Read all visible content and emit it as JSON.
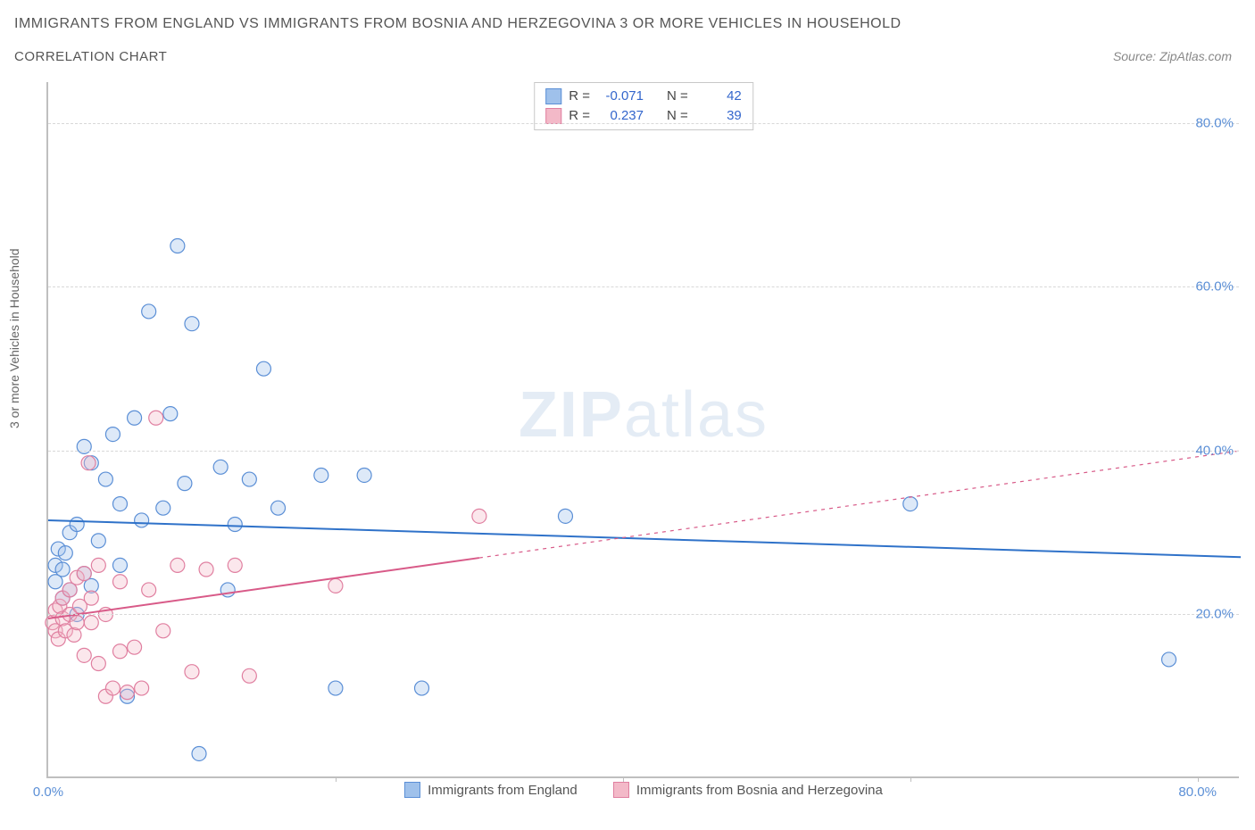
{
  "title_line1": "IMMIGRANTS FROM ENGLAND VS IMMIGRANTS FROM BOSNIA AND HERZEGOVINA 3 OR MORE VEHICLES IN HOUSEHOLD",
  "title_line2": "CORRELATION CHART",
  "source_label": "Source: ZipAtlas.com",
  "y_axis_label": "3 or more Vehicles in Household",
  "watermark": {
    "part1": "ZIP",
    "part2": "atlas"
  },
  "chart": {
    "type": "scatter",
    "xlim": [
      0,
      83
    ],
    "ylim": [
      0,
      85
    ],
    "x_ticks": [
      0,
      80
    ],
    "x_tick_labels": [
      "0.0%",
      "80.0%"
    ],
    "x_minor_ticks": [
      20,
      40,
      60,
      80
    ],
    "y_ticks": [
      20,
      40,
      60,
      80
    ],
    "y_tick_labels": [
      "20.0%",
      "40.0%",
      "60.0%",
      "80.0%"
    ],
    "grid_color": "#d8d8d8",
    "axis_color": "#bfbfbf",
    "background_color": "#ffffff",
    "label_fontsize": 14,
    "tick_fontsize": 15,
    "tick_color": "#5b8fd6",
    "marker_radius": 8,
    "marker_fill_opacity": 0.35,
    "marker_stroke_width": 1.2,
    "series": [
      {
        "id": "england",
        "label": "Immigrants from England",
        "color_fill": "#9fc1eb",
        "color_stroke": "#5b8fd6",
        "R": "-0.071",
        "N": "42",
        "trend": {
          "x1": 0,
          "y1": 31.5,
          "x2": 83,
          "y2": 27.0,
          "dash_split_x": 83,
          "color": "#2f72c9",
          "width": 2
        },
        "points": [
          [
            0.5,
            24
          ],
          [
            0.5,
            26
          ],
          [
            0.7,
            28
          ],
          [
            1.0,
            22
          ],
          [
            1.0,
            25.5
          ],
          [
            1.2,
            27.5
          ],
          [
            1.5,
            23
          ],
          [
            1.5,
            30
          ],
          [
            2.0,
            20
          ],
          [
            2.0,
            31
          ],
          [
            2.5,
            25
          ],
          [
            2.5,
            40.5
          ],
          [
            3.0,
            38.5
          ],
          [
            3.0,
            23.5
          ],
          [
            3.5,
            29
          ],
          [
            4.0,
            36.5
          ],
          [
            4.5,
            42
          ],
          [
            5.0,
            26
          ],
          [
            5.0,
            33.5
          ],
          [
            5.5,
            10
          ],
          [
            6.0,
            44
          ],
          [
            6.5,
            31.5
          ],
          [
            7.0,
            57
          ],
          [
            8.0,
            33
          ],
          [
            8.5,
            44.5
          ],
          [
            9.0,
            65
          ],
          [
            9.5,
            36
          ],
          [
            10.0,
            55.5
          ],
          [
            10.5,
            3
          ],
          [
            12.0,
            38
          ],
          [
            12.5,
            23
          ],
          [
            13.0,
            31
          ],
          [
            14.0,
            36.5
          ],
          [
            15.0,
            50
          ],
          [
            16.0,
            33
          ],
          [
            19.0,
            37
          ],
          [
            20.0,
            11
          ],
          [
            22.0,
            37
          ],
          [
            26.0,
            11
          ],
          [
            36.0,
            32
          ],
          [
            60.0,
            33.5
          ],
          [
            78.0,
            14.5
          ]
        ]
      },
      {
        "id": "bosnia",
        "label": "Immigrants from Bosnia and Herzegovina",
        "color_fill": "#f3b9c8",
        "color_stroke": "#e07fa0",
        "R": "0.237",
        "N": "39",
        "trend": {
          "x1": 0,
          "y1": 19.5,
          "x2": 83,
          "y2": 40.0,
          "dash_split_x": 30,
          "color": "#d85a88",
          "width": 2
        },
        "points": [
          [
            0.3,
            19
          ],
          [
            0.5,
            18
          ],
          [
            0.5,
            20.5
          ],
          [
            0.7,
            17
          ],
          [
            0.8,
            21
          ],
          [
            1.0,
            19.5
          ],
          [
            1.0,
            22
          ],
          [
            1.2,
            18
          ],
          [
            1.5,
            20
          ],
          [
            1.5,
            23
          ],
          [
            1.8,
            17.5
          ],
          [
            2.0,
            19
          ],
          [
            2.0,
            24.5
          ],
          [
            2.2,
            21
          ],
          [
            2.5,
            15
          ],
          [
            2.5,
            25
          ],
          [
            2.8,
            38.5
          ],
          [
            3.0,
            19
          ],
          [
            3.0,
            22
          ],
          [
            3.5,
            14
          ],
          [
            3.5,
            26
          ],
          [
            4.0,
            20
          ],
          [
            4.0,
            10
          ],
          [
            4.5,
            11
          ],
          [
            5.0,
            24
          ],
          [
            5.0,
            15.5
          ],
          [
            5.5,
            10.5
          ],
          [
            6.0,
            16
          ],
          [
            6.5,
            11
          ],
          [
            7.0,
            23
          ],
          [
            7.5,
            44
          ],
          [
            8.0,
            18
          ],
          [
            9.0,
            26
          ],
          [
            10.0,
            13
          ],
          [
            11.0,
            25.5
          ],
          [
            13.0,
            26
          ],
          [
            14.0,
            12.5
          ],
          [
            20.0,
            23.5
          ],
          [
            30.0,
            32
          ]
        ]
      }
    ]
  },
  "legend_top": {
    "r_label": "R =",
    "n_label": "N ="
  }
}
